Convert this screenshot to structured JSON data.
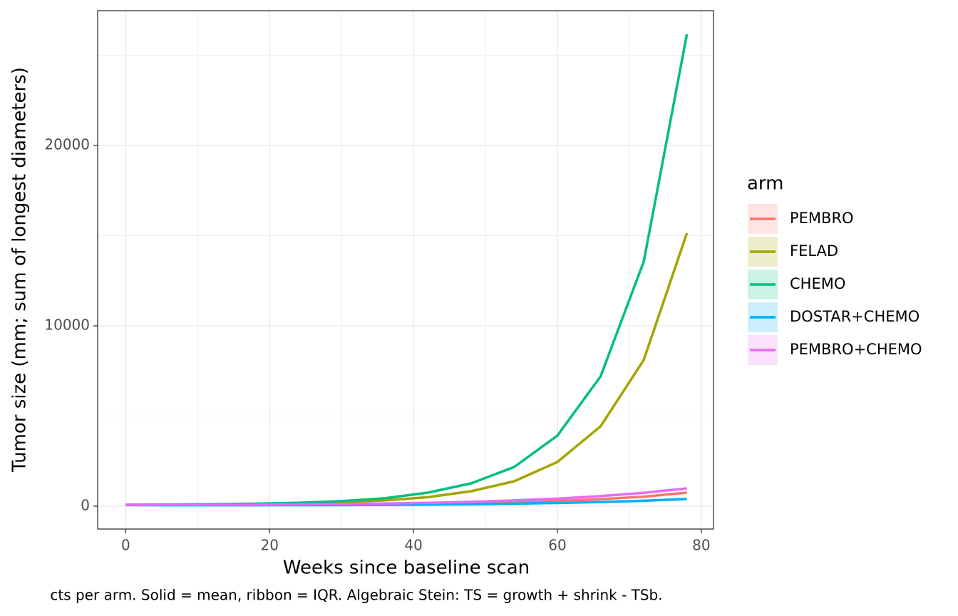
{
  "chart_data": {
    "type": "line",
    "x_label": "Weeks since baseline scan",
    "y_label": "Tumor size (mm; sum of longest diameters)",
    "caption": "cts per arm. Solid = mean, ribbon = IQR. Algebraic Stein: TS = growth + shrink - TSb.",
    "legend_title": "arm",
    "legend_position": "right",
    "grid": true,
    "x": [
      0,
      6,
      12,
      18,
      24,
      30,
      36,
      42,
      48,
      54,
      60,
      66,
      72,
      78
    ],
    "xlim": [
      -3.9,
      81.7
    ],
    "xticks": [
      0,
      20,
      40,
      60,
      80
    ],
    "xminor": [
      10,
      30,
      50,
      70
    ],
    "ylim": [
      -1265,
      27470
    ],
    "yticks": [
      0,
      10000,
      20000
    ],
    "yminor": [
      5000,
      15000,
      25000
    ],
    "series": [
      {
        "name": "PEMBRO",
        "color": "#F8766D",
        "values": [
          70,
          65,
          70,
          75,
          85,
          95,
          110,
          135,
          170,
          220,
          290,
          390,
          530,
          750
        ]
      },
      {
        "name": "FELAD",
        "color": "#A3A500",
        "values": [
          80,
          90,
          100,
          120,
          160,
          220,
          320,
          500,
          830,
          1383,
          2451,
          4427,
          8103,
          15138
        ]
      },
      {
        "name": "CHEMO",
        "color": "#00BF7D",
        "values": [
          80,
          90,
          110,
          140,
          190,
          280,
          440,
          751,
          1265,
          2174,
          3913,
          7194,
          13557,
          26166
        ]
      },
      {
        "name": "DOSTAR+CHEMO",
        "color": "#00B0F6",
        "values": [
          65,
          55,
          55,
          55,
          60,
          65,
          75,
          90,
          110,
          140,
          180,
          230,
          300,
          400
        ]
      },
      {
        "name": "PEMBRO+CHEMO",
        "color": "#E76BF3",
        "values": [
          75,
          70,
          75,
          85,
          100,
          120,
          150,
          190,
          240,
          320,
          420,
          560,
          740,
          988
        ]
      }
    ]
  }
}
